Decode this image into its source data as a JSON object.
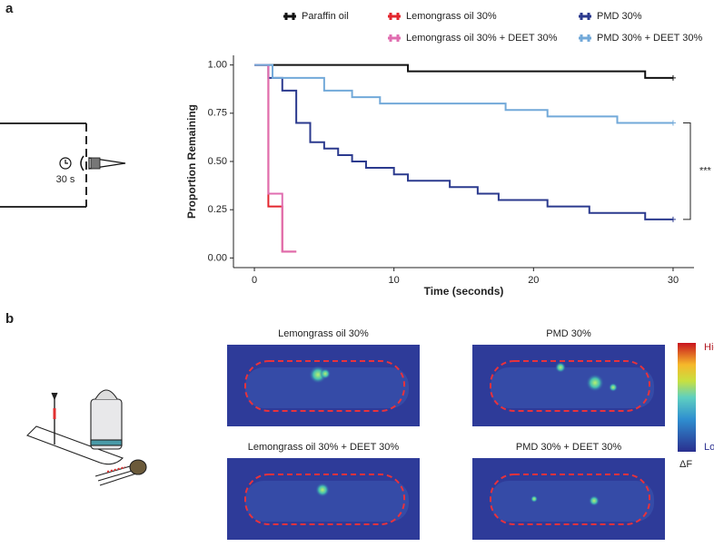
{
  "chart_data": {
    "type": "line",
    "step": true,
    "xlabel": "Time (seconds)",
    "ylabel": "Proportion Remaining",
    "xlim": [
      -1.5,
      31.5
    ],
    "ylim": [
      -0.05,
      1.05
    ],
    "xticks": [
      0,
      10,
      20,
      30
    ],
    "yticks": [
      {
        "value": 0,
        "label": "0.00"
      },
      {
        "value": 0.25,
        "label": "0.25"
      },
      {
        "value": 0.5,
        "label": "0.50"
      },
      {
        "value": 0.75,
        "label": "0.75"
      },
      {
        "value": 1,
        "label": "1.00"
      }
    ],
    "grid": false,
    "legend": "top",
    "annotation": "***",
    "series": [
      {
        "name": "Paraffin oil",
        "color": "#111111",
        "censored": true,
        "x": [
          0,
          11,
          11,
          28,
          28,
          30
        ],
        "values": [
          1,
          1,
          0.967,
          0.967,
          0.933,
          0.933
        ]
      },
      {
        "name": "Lemongrass oil 30%",
        "color": "#e3262e",
        "censored": false,
        "x": [
          0,
          1,
          1,
          2,
          2,
          3
        ],
        "values": [
          1,
          1,
          0.267,
          0.267,
          0.033,
          0.033
        ]
      },
      {
        "name": "PMD 30%",
        "color": "#2b3a8e",
        "censored": true,
        "x": [
          0,
          1,
          1,
          2,
          2,
          3,
          3,
          4,
          4,
          5,
          5,
          6,
          6,
          7,
          7,
          8,
          8,
          10,
          10,
          11,
          11,
          14,
          14,
          16,
          16,
          17.5,
          17.5,
          21,
          21,
          24,
          24,
          28,
          28,
          30
        ],
        "values": [
          1,
          1,
          0.933,
          0.933,
          0.867,
          0.867,
          0.7,
          0.7,
          0.6,
          0.6,
          0.567,
          0.567,
          0.533,
          0.533,
          0.5,
          0.5,
          0.467,
          0.467,
          0.433,
          0.433,
          0.4,
          0.4,
          0.367,
          0.367,
          0.333,
          0.333,
          0.3,
          0.3,
          0.267,
          0.267,
          0.233,
          0.233,
          0.2,
          0.2
        ]
      },
      {
        "name": "Lemongrass oil 30% + DEET 30%",
        "color": "#e06db0",
        "censored": false,
        "x": [
          0,
          1,
          1,
          2,
          2,
          3
        ],
        "values": [
          1,
          1,
          0.333,
          0.333,
          0.033,
          0.033
        ]
      },
      {
        "name": "PMD 30% + DEET 30%",
        "color": "#72a9d9",
        "censored": true,
        "x": [
          0,
          1.3,
          1.3,
          5,
          5,
          7,
          7,
          9,
          9,
          18,
          18,
          21,
          21,
          26,
          26,
          30
        ],
        "values": [
          1,
          1,
          0.933,
          0.933,
          0.867,
          0.867,
          0.833,
          0.833,
          0.8,
          0.8,
          0.767,
          0.767,
          0.733,
          0.733,
          0.7,
          0.7
        ]
      }
    ]
  },
  "panel_labels": [
    "a",
    "b"
  ],
  "assay": {
    "timer": "30 s"
  },
  "images": {
    "titles": [
      "Lemongrass oil 30%",
      "PMD 30%",
      "Lemongrass oil 30% + DEET 30%",
      "PMD 30% + DEET 30%"
    ]
  },
  "colorbar": {
    "high": "High",
    "low": "Low",
    "label": "ΔF"
  }
}
